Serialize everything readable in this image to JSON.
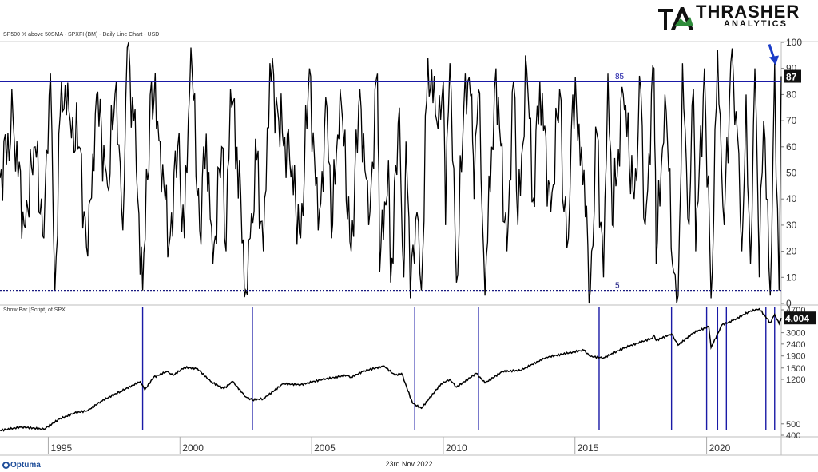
{
  "brand": {
    "line1": "THRASHER",
    "line2": "ANALYTICS",
    "footer_logo": "Optuma"
  },
  "footer": {
    "date": "23rd Nov 2022"
  },
  "chart_data": [
    {
      "type": "line",
      "title": "SP500 % above 50SMA - SPXFI (BM) - Daily Line Chart - USD",
      "ylim": [
        0,
        100
      ],
      "y_ticks": [
        0,
        10,
        20,
        30,
        40,
        50,
        60,
        70,
        80,
        90,
        100
      ],
      "last_value": 87,
      "last_value_label": "87",
      "reference_lines": [
        {
          "value": 85,
          "label": "85",
          "style": "solid",
          "color": "#1a1aa6"
        },
        {
          "value": 5,
          "label": "5",
          "style": "dotted",
          "color": "#1a1a80"
        }
      ],
      "annotation": "arrow pointing at latest reading",
      "x_range": [
        "1993-03",
        "2022-11"
      ],
      "points": [
        [
          "1993-03",
          48
        ],
        [
          "1993-09",
          70
        ],
        [
          "1994-02",
          30
        ],
        [
          "1994-07",
          60
        ],
        [
          "1994-11",
          25
        ],
        [
          "1995-02",
          88
        ],
        [
          "1995-04",
          5
        ],
        [
          "1995-07",
          85
        ],
        [
          "1995-11",
          70
        ],
        [
          "1996-03",
          60
        ],
        [
          "1996-07",
          18
        ],
        [
          "1996-11",
          80
        ],
        [
          "1997-04",
          45
        ],
        [
          "1997-08",
          85
        ],
        [
          "1997-11",
          28
        ],
        [
          "1998-01",
          98
        ],
        [
          "1998-04",
          70
        ],
        [
          "1998-08",
          5
        ],
        [
          "1998-12",
          85
        ],
        [
          "1999-04",
          62
        ],
        [
          "1999-08",
          22
        ],
        [
          "1999-12",
          60
        ],
        [
          "2000-03",
          25
        ],
        [
          "2000-06",
          98
        ],
        [
          "2000-10",
          28
        ],
        [
          "2001-01",
          65
        ],
        [
          "2001-04",
          15
        ],
        [
          "2001-08",
          60
        ],
        [
          "2001-10",
          20
        ],
        [
          "2001-12",
          82
        ],
        [
          "2002-03",
          60
        ],
        [
          "2002-07",
          5
        ],
        [
          "2002-09",
          25
        ],
        [
          "2002-12",
          55
        ],
        [
          "2003-03",
          20
        ],
        [
          "2003-06",
          92
        ],
        [
          "2003-10",
          70
        ],
        [
          "2004-03",
          55
        ],
        [
          "2004-08",
          25
        ],
        [
          "2004-12",
          90
        ],
        [
          "2005-04",
          28
        ],
        [
          "2005-08",
          75
        ],
        [
          "2005-10",
          25
        ],
        [
          "2006-02",
          82
        ],
        [
          "2006-07",
          20
        ],
        [
          "2006-11",
          82
        ],
        [
          "2007-03",
          30
        ],
        [
          "2007-07",
          88
        ],
        [
          "2007-08",
          12
        ],
        [
          "2007-12",
          55
        ],
        [
          "2008-01",
          8
        ],
        [
          "2008-05",
          75
        ],
        [
          "2008-07",
          10
        ],
        [
          "2008-08",
          62
        ],
        [
          "2008-10",
          2
        ],
        [
          "2009-01",
          35
        ],
        [
          "2009-03",
          5
        ],
        [
          "2009-06",
          94
        ],
        [
          "2009-10",
          70
        ],
        [
          "2010-01",
          85
        ],
        [
          "2010-02",
          30
        ],
        [
          "2010-04",
          92
        ],
        [
          "2010-07",
          8
        ],
        [
          "2010-11",
          88
        ],
        [
          "2011-02",
          80
        ],
        [
          "2011-03",
          40
        ],
        [
          "2011-05",
          82
        ],
        [
          "2011-08",
          3
        ],
        [
          "2011-11",
          60
        ],
        [
          "2012-01",
          90
        ],
        [
          "2012-06",
          20
        ],
        [
          "2012-09",
          85
        ],
        [
          "2012-11",
          30
        ],
        [
          "2013-03",
          90
        ],
        [
          "2013-06",
          40
        ],
        [
          "2013-09",
          85
        ],
        [
          "2014-02",
          35
        ],
        [
          "2014-06",
          82
        ],
        [
          "2014-08",
          35
        ],
        [
          "2014-10",
          25
        ],
        [
          "2014-12",
          80
        ],
        [
          "2015-04",
          60
        ],
        [
          "2015-08",
          5
        ],
        [
          "2015-11",
          65
        ],
        [
          "2016-02",
          10
        ],
        [
          "2016-04",
          88
        ],
        [
          "2016-06",
          30
        ],
        [
          "2016-11",
          80
        ],
        [
          "2017-04",
          40
        ],
        [
          "2017-07",
          82
        ],
        [
          "2017-09",
          30
        ],
        [
          "2018-01",
          90
        ],
        [
          "2018-02",
          15
        ],
        [
          "2018-06",
          80
        ],
        [
          "2018-10",
          12
        ],
        [
          "2018-12",
          3
        ],
        [
          "2019-02",
          92
        ],
        [
          "2019-05",
          30
        ],
        [
          "2019-07",
          82
        ],
        [
          "2019-08",
          20
        ],
        [
          "2019-12",
          90
        ],
        [
          "2020-03",
          2
        ],
        [
          "2020-06",
          97
        ],
        [
          "2020-09",
          30
        ],
        [
          "2020-12",
          92
        ],
        [
          "2021-03",
          65
        ],
        [
          "2021-05",
          20
        ],
        [
          "2021-07",
          80
        ],
        [
          "2021-09",
          15
        ],
        [
          "2021-11",
          90
        ],
        [
          "2022-01",
          10
        ],
        [
          "2022-03",
          70
        ],
        [
          "2022-06",
          3
        ],
        [
          "2022-08",
          92
        ],
        [
          "2022-10",
          5
        ],
        [
          "2022-11",
          87
        ]
      ]
    },
    {
      "type": "line",
      "title": "Show Bar [Script] of SPX",
      "yscale": "log",
      "ylim": [
        400,
        4700
      ],
      "y_ticks": [
        400,
        500,
        1200,
        1500,
        1900,
        2400,
        3000,
        4700
      ],
      "y_tick_labels": [
        "400",
        "500",
        "1200",
        "1500",
        "1900",
        "2400",
        "3000",
        "4700"
      ],
      "last_value": 4004,
      "last_value_label": "4,004",
      "signal_bars_color": "#1a1aa6",
      "signal_bars": [
        "1998-08",
        "2002-10",
        "2008-12",
        "2011-05",
        "2015-12",
        "2018-09",
        "2020-01",
        "2020-06",
        "2020-10",
        "2022-04",
        "2022-08"
      ],
      "x_range": [
        "1993-03",
        "2022-11"
      ],
      "x_tick_labels": [
        "1995",
        "2000",
        "2005",
        "2010",
        "2015",
        "2020"
      ],
      "points": [
        [
          "1993-03",
          440
        ],
        [
          "1994-01",
          470
        ],
        [
          "1994-11",
          450
        ],
        [
          "1995-06",
          550
        ],
        [
          "1996-01",
          620
        ],
        [
          "1996-07",
          650
        ],
        [
          "1997-01",
          780
        ],
        [
          "1997-10",
          950
        ],
        [
          "1998-07",
          1150
        ],
        [
          "1998-09",
          980
        ],
        [
          "1999-01",
          1250
        ],
        [
          "1999-07",
          1400
        ],
        [
          "1999-10",
          1300
        ],
        [
          "2000-03",
          1520
        ],
        [
          "2000-09",
          1480
        ],
        [
          "2001-03",
          1150
        ],
        [
          "2001-09",
          1000
        ],
        [
          "2002-01",
          1150
        ],
        [
          "2002-07",
          850
        ],
        [
          "2002-10",
          800
        ],
        [
          "2003-03",
          820
        ],
        [
          "2003-12",
          1100
        ],
        [
          "2004-08",
          1080
        ],
        [
          "2005-06",
          1200
        ],
        [
          "2006-05",
          1300
        ],
        [
          "2006-07",
          1250
        ],
        [
          "2007-01",
          1420
        ],
        [
          "2007-10",
          1560
        ],
        [
          "2008-03",
          1300
        ],
        [
          "2008-06",
          1350
        ],
        [
          "2008-11",
          750
        ],
        [
          "2009-03",
          680
        ],
        [
          "2009-12",
          1100
        ],
        [
          "2010-04",
          1200
        ],
        [
          "2010-07",
          1030
        ],
        [
          "2011-04",
          1350
        ],
        [
          "2011-08",
          1120
        ],
        [
          "2012-04",
          1400
        ],
        [
          "2012-12",
          1430
        ],
        [
          "2013-12",
          1850
        ],
        [
          "2014-12",
          2050
        ],
        [
          "2015-05",
          2130
        ],
        [
          "2015-08",
          1880
        ],
        [
          "2016-02",
          1830
        ],
        [
          "2016-12",
          2250
        ],
        [
          "2017-12",
          2680
        ],
        [
          "2018-01",
          2850
        ],
        [
          "2018-02",
          2580
        ],
        [
          "2018-09",
          2930
        ],
        [
          "2018-12",
          2350
        ],
        [
          "2019-07",
          3000
        ],
        [
          "2020-02",
          3380
        ],
        [
          "2020-03",
          2240
        ],
        [
          "2020-08",
          3500
        ],
        [
          "2021-01",
          3800
        ],
        [
          "2021-08",
          4500
        ],
        [
          "2022-01",
          4800
        ],
        [
          "2022-06",
          3650
        ],
        [
          "2022-08",
          4300
        ],
        [
          "2022-10",
          3580
        ],
        [
          "2022-11",
          4004
        ]
      ]
    }
  ]
}
